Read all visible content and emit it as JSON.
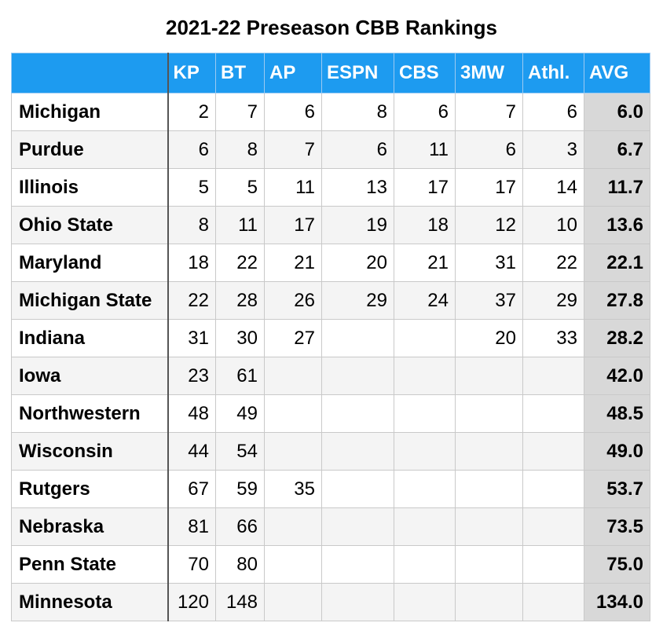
{
  "title": "2021-22 Preseason CBB Rankings",
  "headers": [
    "",
    "KP",
    "BT",
    "AP",
    "ESPN",
    "CBS",
    "3MW",
    "Athl.",
    "AVG"
  ],
  "rows": [
    {
      "team": "Michigan",
      "values": [
        "2",
        "7",
        "6",
        "8",
        "6",
        "7",
        "6"
      ],
      "avg": "6.0"
    },
    {
      "team": "Purdue",
      "values": [
        "6",
        "8",
        "7",
        "6",
        "11",
        "6",
        "3"
      ],
      "avg": "6.7"
    },
    {
      "team": "Illinois",
      "values": [
        "5",
        "5",
        "11",
        "13",
        "17",
        "17",
        "14"
      ],
      "avg": "11.7"
    },
    {
      "team": "Ohio State",
      "values": [
        "8",
        "11",
        "17",
        "19",
        "18",
        "12",
        "10"
      ],
      "avg": "13.6"
    },
    {
      "team": "Maryland",
      "values": [
        "18",
        "22",
        "21",
        "20",
        "21",
        "31",
        "22"
      ],
      "avg": "22.1"
    },
    {
      "team": "Michigan State",
      "values": [
        "22",
        "28",
        "26",
        "29",
        "24",
        "37",
        "29"
      ],
      "avg": "27.8"
    },
    {
      "team": "Indiana",
      "values": [
        "31",
        "30",
        "27",
        "",
        "",
        "20",
        "33"
      ],
      "avg": "28.2"
    },
    {
      "team": "Iowa",
      "values": [
        "23",
        "61",
        "",
        "",
        "",
        "",
        ""
      ],
      "avg": "42.0"
    },
    {
      "team": "Northwestern",
      "values": [
        "48",
        "49",
        "",
        "",
        "",
        "",
        ""
      ],
      "avg": "48.5"
    },
    {
      "team": "Wisconsin",
      "values": [
        "44",
        "54",
        "",
        "",
        "",
        "",
        ""
      ],
      "avg": "49.0"
    },
    {
      "team": "Rutgers",
      "values": [
        "67",
        "59",
        "35",
        "",
        "",
        "",
        ""
      ],
      "avg": "53.7"
    },
    {
      "team": "Nebraska",
      "values": [
        "81",
        "66",
        "",
        "",
        "",
        "",
        ""
      ],
      "avg": "73.5"
    },
    {
      "team": "Penn State",
      "values": [
        "70",
        "80",
        "",
        "",
        "",
        "",
        ""
      ],
      "avg": "75.0"
    },
    {
      "team": "Minnesota",
      "values": [
        "120",
        "148",
        "",
        "",
        "",
        "",
        ""
      ],
      "avg": "134.0"
    }
  ]
}
